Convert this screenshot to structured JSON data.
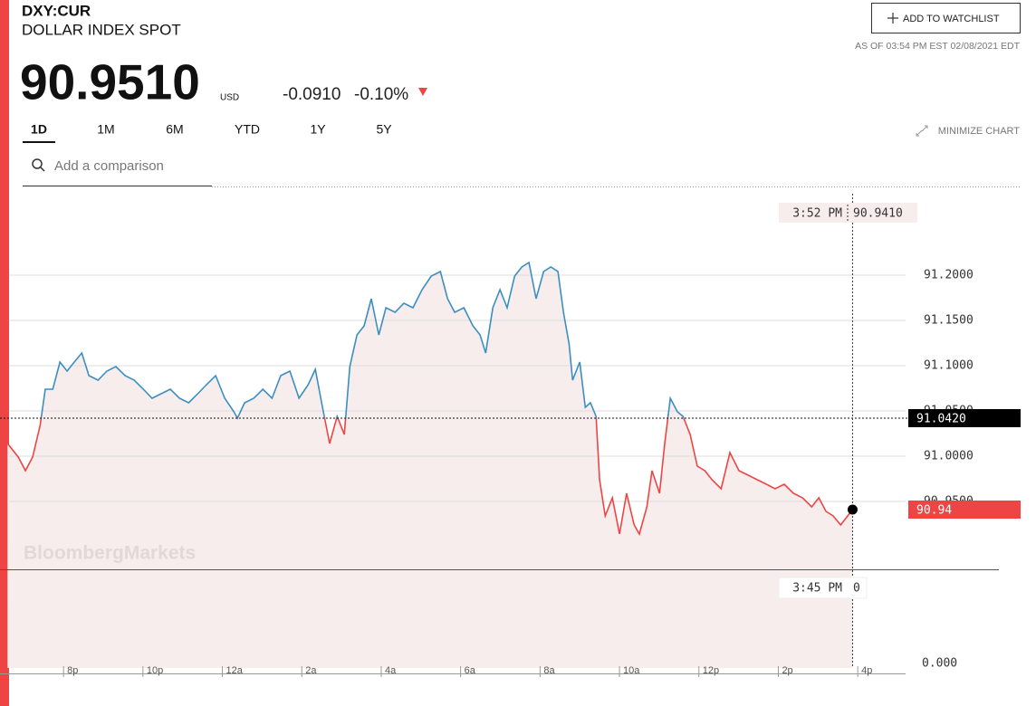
{
  "header": {
    "ticker": "DXY:CUR",
    "name": "DOLLAR INDEX SPOT",
    "price": "90.9510",
    "currency": "USD",
    "change": "-0.0910",
    "change_pct": "-0.10%",
    "watchlist": "ADD TO WATCHLIST",
    "timestamp": "AS OF 03:54 PM EST 02/08/2021 EDT"
  },
  "tabs": [
    "1D",
    "1M",
    "6M",
    "YTD",
    "1Y",
    "5Y"
  ],
  "selected_tab": 0,
  "minimize": "MINIMIZE CHART",
  "search_placeholder": "Add a comparison",
  "watermark": "BloombergMarkets",
  "chart_data": {
    "type": "line",
    "x": [
      18.59,
      18.86,
      19.04,
      19.22,
      19.41,
      19.54,
      19.73,
      19.91,
      20.09,
      20.27,
      20.46,
      20.64,
      20.87,
      21.09,
      21.32,
      21.55,
      21.78,
      22.01,
      22.23,
      22.46,
      22.69,
      22.92,
      23.15,
      23.38,
      23.6,
      23.83,
      24.06,
      24.29,
      24.38,
      24.56,
      24.79,
      25.02,
      25.25,
      25.47,
      25.7,
      25.93,
      26.16,
      26.34,
      26.52,
      26.7,
      26.89,
      27.07,
      27.21,
      27.39,
      27.57,
      27.75,
      27.94,
      28.12,
      28.35,
      28.57,
      28.8,
      29.03,
      29.26,
      29.49,
      29.67,
      29.85,
      30.08,
      30.31,
      30.49,
      30.63,
      30.81,
      30.99,
      31.17,
      31.36,
      31.54,
      31.72,
      31.9,
      32.09,
      32.27,
      32.45,
      32.59,
      32.73,
      32.82,
      33.0,
      33.14,
      33.27,
      33.41,
      33.5,
      33.64,
      33.82,
      34.0,
      34.18,
      34.37,
      34.5,
      34.69,
      34.82,
      35.01,
      35.14,
      35.28,
      35.46,
      35.6,
      35.78,
      35.96,
      36.15,
      36.33,
      36.56,
      36.78,
      37.01,
      37.24,
      37.47,
      37.7,
      37.92,
      38.15,
      38.38,
      38.61,
      38.84,
      39.02,
      39.2,
      39.38,
      39.57,
      39.87
    ],
    "values": [
      91.014,
      90.999,
      90.984,
      90.999,
      91.034,
      91.074,
      91.074,
      91.104,
      91.094,
      91.104,
      91.114,
      91.089,
      91.084,
      91.094,
      91.099,
      91.089,
      91.084,
      91.074,
      91.064,
      91.069,
      91.074,
      91.064,
      91.059,
      91.069,
      91.079,
      91.089,
      91.064,
      91.049,
      91.042,
      91.059,
      91.064,
      91.074,
      91.064,
      91.089,
      91.094,
      91.064,
      91.079,
      91.096,
      91.054,
      91.014,
      91.044,
      91.024,
      91.099,
      91.134,
      91.144,
      91.174,
      91.134,
      91.164,
      91.159,
      91.169,
      91.164,
      91.184,
      91.199,
      91.204,
      91.174,
      91.159,
      91.164,
      91.144,
      91.134,
      91.114,
      91.164,
      91.184,
      91.164,
      91.199,
      91.209,
      91.214,
      91.174,
      91.204,
      91.209,
      91.204,
      91.159,
      91.124,
      91.084,
      91.104,
      91.054,
      91.059,
      91.044,
      90.974,
      90.934,
      90.954,
      90.914,
      90.959,
      90.924,
      90.914,
      90.944,
      90.984,
      90.959,
      91.014,
      91.064,
      91.049,
      91.044,
      91.024,
      90.989,
      90.984,
      90.974,
      90.964,
      91.004,
      90.984,
      90.979,
      90.974,
      90.969,
      90.964,
      90.969,
      90.959,
      90.954,
      90.944,
      90.954,
      90.939,
      90.934,
      90.924,
      90.941
    ],
    "color_up": "#3a8fc0",
    "color_down": "#ef4444",
    "fill_color": "#f8eded",
    "previous_close": 91.042,
    "previous_close_label": "91.0420",
    "last_price_label": "90.94",
    "crosshair": {
      "x": 39.87,
      "time": "3:52 PM",
      "value": 90.941,
      "value_label": "90.9410"
    },
    "volume_crosshair": {
      "time": "3:45 PM",
      "value": 0
    },
    "volume_tick": {
      "value": 0,
      "label": "0.000"
    },
    "xlim": [
      18.4,
      41.0
    ],
    "xticks": [
      {
        "value": 20,
        "label": "8p"
      },
      {
        "value": 22,
        "label": "10p"
      },
      {
        "value": 24,
        "label": "12a"
      },
      {
        "value": 26,
        "label": "2a"
      },
      {
        "value": 28,
        "label": "4a"
      },
      {
        "value": 30,
        "label": "6a"
      },
      {
        "value": 32,
        "label": "8a"
      },
      {
        "value": 34,
        "label": "10a"
      },
      {
        "value": 36,
        "label": "12p"
      },
      {
        "value": 38,
        "label": "2p"
      },
      {
        "value": 40,
        "label": "4p"
      }
    ],
    "ylim": [
      90.875,
      91.29
    ],
    "yticks": [
      {
        "value": 90.95,
        "label": "90.9500"
      },
      {
        "value": 91.0,
        "label": "91.0000"
      },
      {
        "value": 91.05,
        "label": "91.0500"
      },
      {
        "value": 91.1,
        "label": "91.1000"
      },
      {
        "value": 91.15,
        "label": "91.1500"
      },
      {
        "value": 91.2,
        "label": "91.2000"
      }
    ],
    "grid": true
  }
}
